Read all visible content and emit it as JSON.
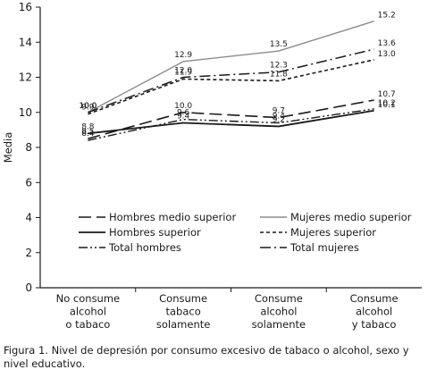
{
  "chart_data": {
    "type": "line",
    "ylabel": "Media",
    "xlabel": "",
    "ylim": [
      0,
      16
    ],
    "yticks": [
      0,
      2,
      4,
      6,
      8,
      10,
      12,
      14,
      16
    ],
    "categories": [
      [
        "No consume",
        "alcohol",
        "o tabaco"
      ],
      [
        "Consume",
        "tabaco",
        "solamente"
      ],
      [
        "Consume",
        "alcohol",
        "solamente"
      ],
      [
        "Consume",
        "alcohol",
        "y tabaco"
      ]
    ],
    "legend_position": "bottom-right",
    "series": [
      {
        "name": "Hombres medio superior",
        "values": [
          8.5,
          10.0,
          9.7,
          10.7
        ],
        "color": "#1a1a1a",
        "style": "long-dash"
      },
      {
        "name": "Mujeres medio superior",
        "values": [
          10.0,
          12.9,
          13.5,
          15.2
        ],
        "color": "#8c8c8c",
        "style": "solid"
      },
      {
        "name": "Hombres superior",
        "values": [
          8.8,
          9.4,
          9.2,
          10.1
        ],
        "color": "#1a1a1a",
        "style": "solid-thick"
      },
      {
        "name": "Mujeres superior",
        "values": [
          9.9,
          11.9,
          11.8,
          13.0
        ],
        "color": "#1a1a1a",
        "style": "short-dash"
      },
      {
        "name": "Total hombres",
        "values": [
          8.4,
          9.6,
          9.4,
          10.2
        ],
        "color": "#1a1a1a",
        "style": "dash-dot-dot"
      },
      {
        "name": "Total mujeres",
        "values": [
          10.0,
          12.0,
          12.3,
          13.6
        ],
        "color": "#1a1a1a",
        "style": "dash-dot"
      }
    ],
    "data_labels": [
      [
        "8.5",
        "10.0",
        "9.7",
        "10.7"
      ],
      [
        "10.0",
        "12.9",
        "13.5",
        "15.2"
      ],
      [
        "8.8",
        "9.4",
        "9.2",
        "10.1"
      ],
      [
        "9.9",
        "11.9",
        "11.8",
        "13.0"
      ],
      [
        "8.4",
        "9.6",
        "9.4",
        "10.2"
      ],
      [
        "10.0",
        "12.0",
        "12.3",
        "13.6"
      ]
    ]
  },
  "caption": {
    "figure_label": "Figura 1.",
    "text": " Nivel de depresión por consumo excesivo de tabaco o alcohol, sexo y nivel educativo."
  }
}
